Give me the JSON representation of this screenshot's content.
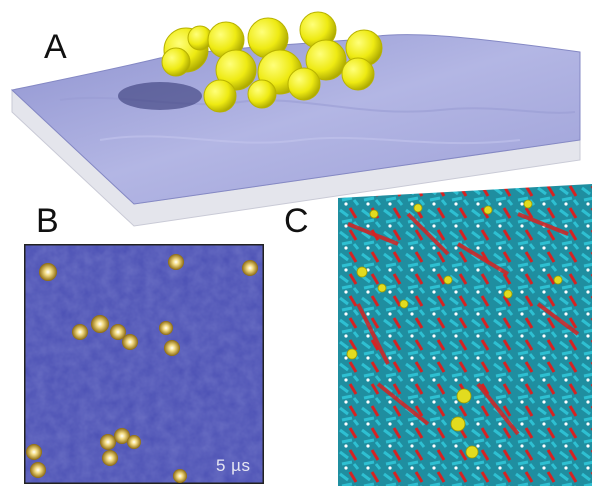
{
  "panels": {
    "a": {
      "letter": "A"
    },
    "b": {
      "letter": "B",
      "scale_label": "5 µs"
    },
    "c": {
      "letter": "C"
    }
  },
  "colors": {
    "membrane_top": "#a6a8dc",
    "membrane_side": "#e6e7ee",
    "protein": "#f2ee1a",
    "afm_background": "#4a4fb2",
    "afm_particle": "#c8a028",
    "lipid_cyan": "#29b6c8",
    "lipid_red": "#d82424",
    "lipid_yellow": "#d9d51e"
  }
}
